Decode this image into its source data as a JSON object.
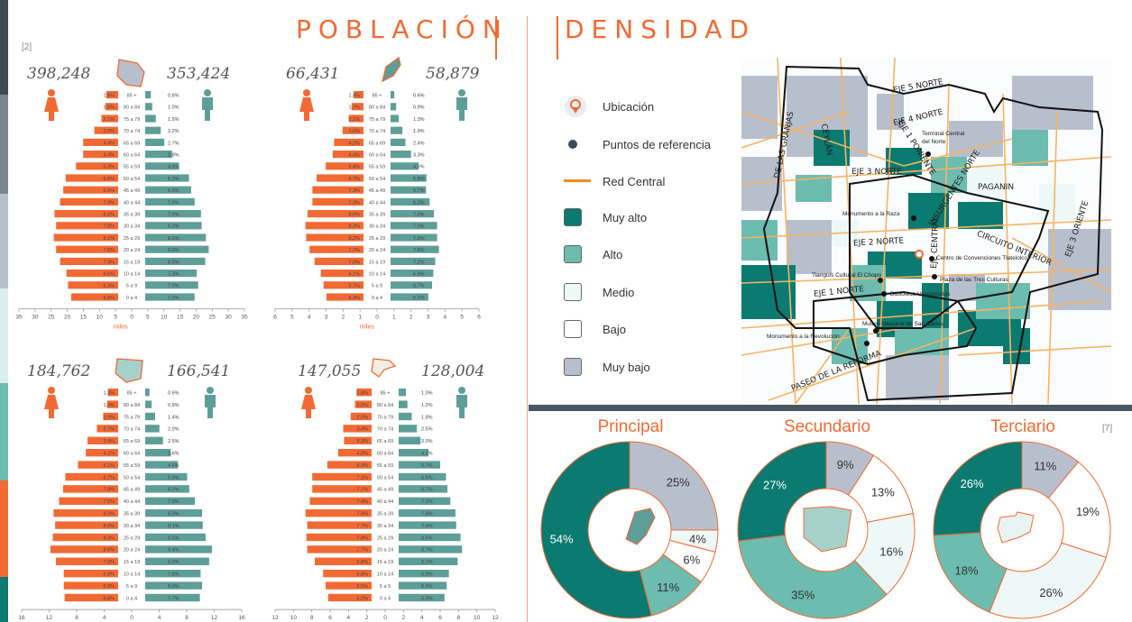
{
  "titles": {
    "poblacion": "POBLACIÓN",
    "densidad": "DENSIDAD",
    "cite_pop": "[2]",
    "cite_dens": "[7]"
  },
  "colors": {
    "female": "#f26a33",
    "male": "#5e9e98",
    "very_high": "#0b7a70",
    "high": "#6cbcb0",
    "medium": "#eef8f7",
    "low": "#ffffff",
    "very_low": "#b8bfcc",
    "orange": "#f26a33"
  },
  "age_groups": [
    "85 +",
    "80 a 84",
    "75 a 79",
    "70 a 74",
    "65 a 69",
    "60 a 64",
    "55 a 59",
    "50 a 54",
    "45 a 49",
    "40 a 44",
    "35 a 39",
    "30 a 34",
    "25 a 29",
    "20 a 24",
    "15 a 19",
    "10 a 14",
    "5 a 9",
    "0 a 4"
  ],
  "unit_label": "miles",
  "pyramids": [
    {
      "female_total": "398,248",
      "male_total": "353,424",
      "scale": 35,
      "ticks": [
        "35",
        "30",
        "25",
        "20",
        "15",
        "10",
        "5",
        "0",
        "5",
        "10",
        "15",
        "20",
        "25",
        "30",
        "35"
      ],
      "show_unit": true,
      "female_pct": [
        "1.5%",
        "1.6%",
        "2.1%",
        "3.0%",
        "4.4%",
        "4.4%",
        "5.3%",
        "6.6%",
        "6.9%",
        "7.3%",
        "8.0%",
        "7.8%",
        "8.1%",
        "7.8%",
        "7.3%",
        "6.5%",
        "6.3%",
        "5.9%"
      ],
      "male_pct": [
        "0.8%",
        "1.0%",
        "1.5%",
        "2.2%",
        "2.7%",
        "3.8%",
        "4.8%",
        "6.2%",
        "6.5%",
        "7.0%",
        "7.9%",
        "8.0%",
        "8.6%",
        "9.0%",
        "8.5%",
        "7.3%",
        "7.5%",
        "7.0%"
      ],
      "female_vals": [
        5.97,
        6.37,
        8.36,
        11.95,
        17.52,
        17.52,
        21.1,
        26.28,
        27.48,
        29.07,
        31.86,
        31.06,
        32.26,
        31.06,
        29.07,
        25.89,
        25.09,
        23.5
      ],
      "male_vals": [
        2.83,
        3.53,
        5.3,
        7.78,
        9.54,
        13.43,
        16.96,
        21.91,
        22.97,
        24.74,
        27.92,
        28.27,
        30.39,
        31.81,
        30.04,
        25.8,
        26.51,
        24.74
      ]
    },
    {
      "female_total": "66,431",
      "male_total": "58,879",
      "scale": 6,
      "ticks": [
        "6",
        "5",
        "4",
        "3",
        "2",
        "1",
        "0",
        "1",
        "2",
        "3",
        "4",
        "5",
        "6"
      ],
      "show_unit": true,
      "female_pct": [
        "1.4%",
        "1.7%",
        "2.1%",
        "3.0%",
        "4.2%",
        "4.4%",
        "5.4%",
        "6.7%",
        "7.3%",
        "7.3%",
        "8.0%",
        "8.3%",
        "8.2%",
        "7.7%",
        "7.0%",
        "6.1%",
        "5.7%",
        "5.3%"
      ],
      "male_pct": [
        "0.6%",
        "0.9%",
        "1.3%",
        "1.9%",
        "2.4%",
        "3.3%",
        "4.5%",
        "5.8%",
        "5.7%",
        "6.3%",
        "7.0%",
        "7.5%",
        "7.5%",
        "7.8%",
        "7.2%",
        "6.9%",
        "6.7%",
        "6.1%"
      ],
      "female_vals": [
        0.93,
        1.13,
        1.4,
        1.99,
        2.79,
        2.92,
        3.59,
        4.45,
        4.85,
        4.85,
        5.31,
        5.51,
        5.45,
        5.12,
        4.65,
        4.05,
        3.79,
        3.52
      ],
      "male_vals": [
        0.35,
        0.53,
        0.77,
        1.12,
        1.41,
        1.94,
        2.65,
        3.41,
        3.36,
        3.71,
        4.12,
        4.42,
        4.42,
        4.59,
        4.24,
        4.06,
        3.94,
        3.59
      ]
    },
    {
      "female_total": "184,762",
      "male_total": "166,541",
      "scale": 16,
      "ticks": [
        "16",
        "12",
        "8",
        "4",
        "0",
        "4",
        "8",
        "12",
        "16"
      ],
      "show_unit": false,
      "female_pct": [
        "1.3%",
        "1.4%",
        "1.9%",
        "2.7%",
        "3.9%",
        "4.1%",
        "5.1%",
        "6.7%",
        "7.0%",
        "7.5%",
        "8.2%",
        "8.0%",
        "8.3%",
        "8.6%",
        "7.9%",
        "6.9%",
        "6.9%",
        "6.8%"
      ],
      "male_pct": [
        "0.6%",
        "0.9%",
        "1.4%",
        "2.0%",
        "2.5%",
        "3.6%",
        "4.6%",
        "5.9%",
        "6.2%",
        "7.0%",
        "8.0%",
        "8.1%",
        "8.5%",
        "9.4%",
        "9.0%",
        "7.8%",
        "8.0%",
        "7.7%"
      ],
      "female_vals": [
        2.4,
        2.59,
        3.51,
        4.99,
        7.21,
        7.58,
        9.42,
        12.38,
        12.93,
        13.86,
        15.15,
        14.78,
        15.34,
        15.89,
        14.6,
        12.75,
        12.75,
        12.56
      ],
      "male_vals": [
        1.0,
        1.5,
        2.33,
        3.33,
        4.16,
        6.0,
        7.66,
        9.83,
        10.33,
        11.66,
        13.32,
        13.49,
        14.16,
        15.65,
        14.99,
        12.99,
        13.32,
        12.82
      ]
    },
    {
      "female_total": "147,055",
      "male_total": "128,004",
      "scale": 12,
      "ticks": [
        "12",
        "10",
        "8",
        "6",
        "4",
        "2",
        "0",
        "2",
        "4",
        "6",
        "8",
        "10",
        "12"
      ],
      "show_unit": false,
      "female_pct": [
        "1.8%",
        "2.0%",
        "2.5%",
        "3.4%",
        "3.3%",
        "4.0%",
        "5.3%",
        "7.1%",
        "7.1%",
        "7.4%",
        "7.9%",
        "7.7%",
        "7.8%",
        "7.7%",
        "6.8%",
        "5.8%",
        "5.5%",
        "5.2%"
      ],
      "male_pct": [
        "1.0%",
        "1.2%",
        "1.8%",
        "2.5%",
        "3.0%",
        "4.1%",
        "5.7%",
        "6.5%",
        "6.7%",
        "7.1%",
        "7.8%",
        "7.9%",
        "8.5%",
        "8.7%",
        "8.1%",
        "6.9%",
        "6.6%",
        "6.3%"
      ],
      "female_vals": [
        2.65,
        2.94,
        3.68,
        5.0,
        4.85,
        5.88,
        7.79,
        10.44,
        10.44,
        10.88,
        11.62,
        11.32,
        11.47,
        11.32,
        10.0,
        8.53,
        8.09,
        7.65
      ],
      "male_vals": [
        1.28,
        1.54,
        2.3,
        3.2,
        3.84,
        5.25,
        7.3,
        8.32,
        8.58,
        9.09,
        9.98,
        10.11,
        10.88,
        11.14,
        10.37,
        8.83,
        8.45,
        8.06
      ]
    }
  ],
  "legend": [
    {
      "key": "ubicacion",
      "label": "Ubicación",
      "icon": "location-pin-icon"
    },
    {
      "key": "puntos",
      "label": "Puntos de referencia",
      "icon": "dot-icon"
    },
    {
      "key": "red",
      "label": "Red Central",
      "icon": "line-icon"
    },
    {
      "key": "muy_alto",
      "label": "Muy alto",
      "color": "#0b7a70"
    },
    {
      "key": "alto",
      "label": "Alto",
      "color": "#6cbcb0"
    },
    {
      "key": "medio",
      "label": "Medio",
      "color": "#eef8f7"
    },
    {
      "key": "bajo",
      "label": "Bajo",
      "color": "#ffffff"
    },
    {
      "key": "muy_bajo",
      "label": "Muy bajo",
      "color": "#b8bfcc"
    }
  ],
  "map": {
    "streets": [
      "EJE 5 NORTE",
      "EJE 4 NORTE",
      "EJE 1 PONIENTE",
      "CEYLÁN",
      "DE LAS GRANJAS",
      "EJE 3 NORTE",
      "INSURGENTES NORTE",
      "PAGANIN",
      "EJE 2 NORTE",
      "EJE CENTRAL",
      "CIRCUITO INTERIOR",
      "EJE 3 ORIENTE",
      "EJE 1 NORTE",
      "PASEO DE LA REFORMA"
    ],
    "places": [
      "Terminal Central del Norte",
      "Monumento a la Raza",
      "Centro de Convenciones Tlatelolco",
      "Tianguis Cultural El Chopo",
      "Plaza de las Tres Culturas",
      "Biblioteca Vasconcelos",
      "Museo Nacional de San Carlos",
      "Monumento a la Revolución"
    ]
  },
  "chart_data": [
    {
      "type": "pie",
      "title": "Principal",
      "labels": [
        "Muy alto",
        "Muy bajo",
        "Medio",
        "Bajo",
        "Alto"
      ],
      "values": [
        54,
        25,
        4,
        6,
        11
      ],
      "value_labels": [
        "54%",
        "25%",
        "4%",
        "6%",
        "11%"
      ],
      "colors": [
        "#0b7a70",
        "#b8bfcc",
        "#eef8f7",
        "#ffffff",
        "#6cbcb0"
      ]
    },
    {
      "type": "pie",
      "title": "Secundario",
      "labels": [
        "Muy alto",
        "Muy bajo",
        "Bajo",
        "Medio",
        "Alto"
      ],
      "values": [
        27,
        9,
        13,
        16,
        35
      ],
      "value_labels": [
        "27%",
        "9%",
        "13%",
        "16%",
        "35%"
      ],
      "colors": [
        "#0b7a70",
        "#b8bfcc",
        "#ffffff",
        "#eef8f7",
        "#6cbcb0"
      ]
    },
    {
      "type": "pie",
      "title": "Terciario",
      "labels": [
        "Muy alto",
        "Muy bajo",
        "Bajo",
        "Medio",
        "Alto"
      ],
      "values": [
        26,
        11,
        19,
        26,
        18
      ],
      "value_labels": [
        "26%",
        "11%",
        "19%",
        "26%",
        "18%"
      ],
      "colors": [
        "#0b7a70",
        "#b8bfcc",
        "#ffffff",
        "#eef8f7",
        "#6cbcb0"
      ]
    }
  ]
}
